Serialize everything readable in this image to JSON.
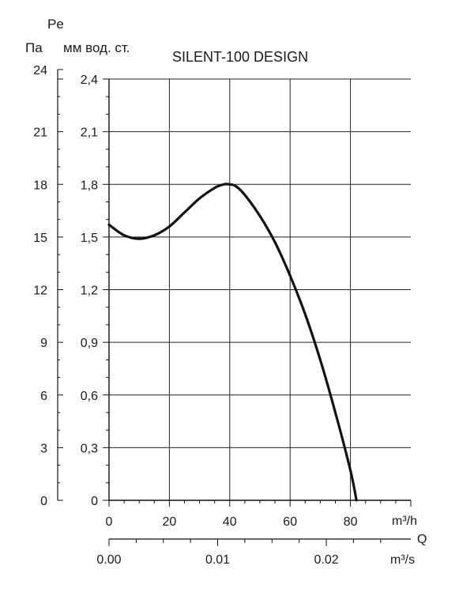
{
  "chart_data": {
    "type": "line",
    "title": "SILENT-100 DESIGN",
    "pressure_symbol": "Pe",
    "pressure_unit_pa": "Па",
    "pressure_unit_mm": "мм вод. ст.",
    "flow_symbol": "Q",
    "x_unit_h": "m³/h",
    "x_unit_s": "m³/s",
    "xlim": [
      0,
      100
    ],
    "ylim": [
      0,
      2.4
    ],
    "grid": true,
    "x_ticks": [
      "0",
      "20",
      "40",
      "60",
      "80"
    ],
    "x_tick_values": [
      0,
      20,
      40,
      60,
      80
    ],
    "y_ticks": [
      "0",
      "0,3",
      "0,6",
      "0,9",
      "1,2",
      "1,5",
      "1,8",
      "2,1",
      "2,4"
    ],
    "y_tick_values": [
      0,
      0.3,
      0.6,
      0.9,
      1.2,
      1.5,
      1.8,
      2.1,
      2.4
    ],
    "pa_ticks": [
      "0",
      "3",
      "6",
      "9",
      "12",
      "15",
      "18",
      "21",
      "24"
    ],
    "s_ticks": [
      "0.00",
      "0.01",
      "0.02"
    ],
    "s_tick_values": [
      0,
      0.01,
      0.02
    ],
    "series": [
      {
        "x": [
          0,
          5,
          10,
          15,
          20,
          25,
          30,
          35,
          38,
          40,
          42,
          45,
          50,
          55,
          60,
          65,
          70,
          75,
          80,
          82
        ],
        "y": [
          1.57,
          1.51,
          1.49,
          1.51,
          1.56,
          1.64,
          1.72,
          1.78,
          1.8,
          1.8,
          1.79,
          1.74,
          1.62,
          1.47,
          1.28,
          1.06,
          0.8,
          0.5,
          0.17,
          0.0
        ]
      }
    ]
  }
}
